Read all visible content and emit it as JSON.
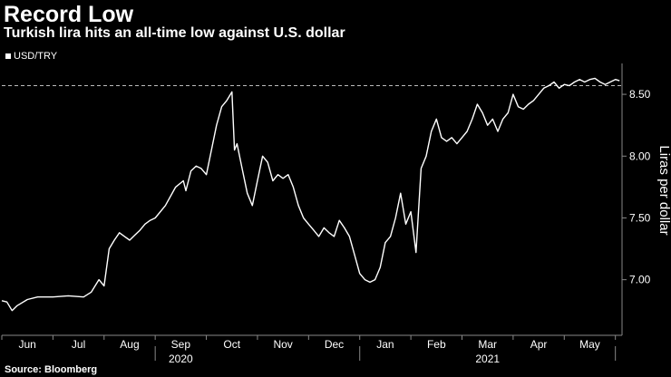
{
  "title": "Record Low",
  "subtitle": "Turkish lira hits an all-time low against U.S. dollar",
  "source": "Source: Bloomberg",
  "colors": {
    "background": "#000000",
    "line": "#ffffff",
    "axis": "#888888"
  },
  "chart_data": {
    "type": "line",
    "title": "Record Low",
    "subtitle": "Turkish lira hits an all-time low against U.S. dollar",
    "ylabel": "Liras per dollar",
    "xlabel": "",
    "ylim": [
      6.55,
      8.75
    ],
    "yticks": [
      7.0,
      7.5,
      8.0,
      8.5
    ],
    "ytick_labels": [
      "7.00",
      "7.50",
      "8.00",
      "8.50"
    ],
    "xlim": [
      0,
      12.13
    ],
    "months": [
      "Jun",
      "Jul",
      "Aug",
      "Sep",
      "Oct",
      "Nov",
      "Dec",
      "Jan",
      "Feb",
      "Mar",
      "Apr",
      "May"
    ],
    "years": [
      {
        "label": "2020",
        "at": 3.5
      },
      {
        "label": "2021",
        "at": 9.5
      }
    ],
    "reference_line": {
      "value": 8.57,
      "style": "dashed"
    },
    "legend": [
      "USD/TRY"
    ],
    "grid": false,
    "series": [
      {
        "name": "USD/TRY",
        "x": [
          0,
          0.1,
          0.2,
          0.3,
          0.5,
          0.7,
          1.0,
          1.3,
          1.6,
          1.75,
          1.9,
          2.0,
          2.1,
          2.2,
          2.3,
          2.4,
          2.5,
          2.6,
          2.7,
          2.8,
          2.9,
          3.0,
          3.2,
          3.4,
          3.55,
          3.6,
          3.7,
          3.8,
          3.9,
          4.0,
          4.1,
          4.2,
          4.3,
          4.4,
          4.5,
          4.55,
          4.6,
          4.7,
          4.8,
          4.9,
          5.0,
          5.1,
          5.2,
          5.3,
          5.4,
          5.5,
          5.6,
          5.7,
          5.8,
          5.9,
          6.0,
          6.1,
          6.2,
          6.3,
          6.4,
          6.5,
          6.6,
          6.7,
          6.8,
          6.9,
          7.0,
          7.1,
          7.2,
          7.3,
          7.4,
          7.5,
          7.6,
          7.7,
          7.8,
          7.9,
          8.0,
          8.1,
          8.2,
          8.3,
          8.4,
          8.5,
          8.6,
          8.7,
          8.8,
          8.9,
          9.0,
          9.1,
          9.2,
          9.3,
          9.4,
          9.5,
          9.6,
          9.7,
          9.8,
          9.9,
          10.0,
          10.1,
          10.2,
          10.3,
          10.4,
          10.5,
          10.6,
          10.7,
          10.8,
          10.9,
          11.0,
          11.1,
          11.2,
          11.3,
          11.4,
          11.5,
          11.6,
          11.7,
          11.8,
          11.9,
          12.0,
          12.08
        ],
        "values": [
          6.83,
          6.82,
          6.75,
          6.79,
          6.84,
          6.86,
          6.86,
          6.87,
          6.86,
          6.9,
          7.0,
          6.95,
          7.25,
          7.32,
          7.38,
          7.35,
          7.32,
          7.36,
          7.4,
          7.45,
          7.48,
          7.5,
          7.6,
          7.75,
          7.8,
          7.72,
          7.88,
          7.92,
          7.9,
          7.85,
          8.05,
          8.25,
          8.4,
          8.45,
          8.52,
          8.05,
          8.1,
          7.9,
          7.7,
          7.6,
          7.8,
          8.0,
          7.95,
          7.8,
          7.85,
          7.82,
          7.85,
          7.75,
          7.6,
          7.5,
          7.45,
          7.4,
          7.35,
          7.42,
          7.38,
          7.35,
          7.48,
          7.42,
          7.35,
          7.2,
          7.05,
          7.0,
          6.98,
          7.0,
          7.1,
          7.3,
          7.35,
          7.5,
          7.7,
          7.45,
          7.55,
          7.22,
          7.9,
          8.0,
          8.2,
          8.3,
          8.15,
          8.12,
          8.15,
          8.1,
          8.15,
          8.2,
          8.3,
          8.42,
          8.35,
          8.25,
          8.3,
          8.2,
          8.3,
          8.35,
          8.5,
          8.4,
          8.38,
          8.42,
          8.45,
          8.5,
          8.55,
          8.57,
          8.6,
          8.55,
          8.58,
          8.57,
          8.6,
          8.62,
          8.6,
          8.62,
          8.63,
          8.6,
          8.58,
          8.6,
          8.62,
          8.61
        ]
      }
    ]
  }
}
